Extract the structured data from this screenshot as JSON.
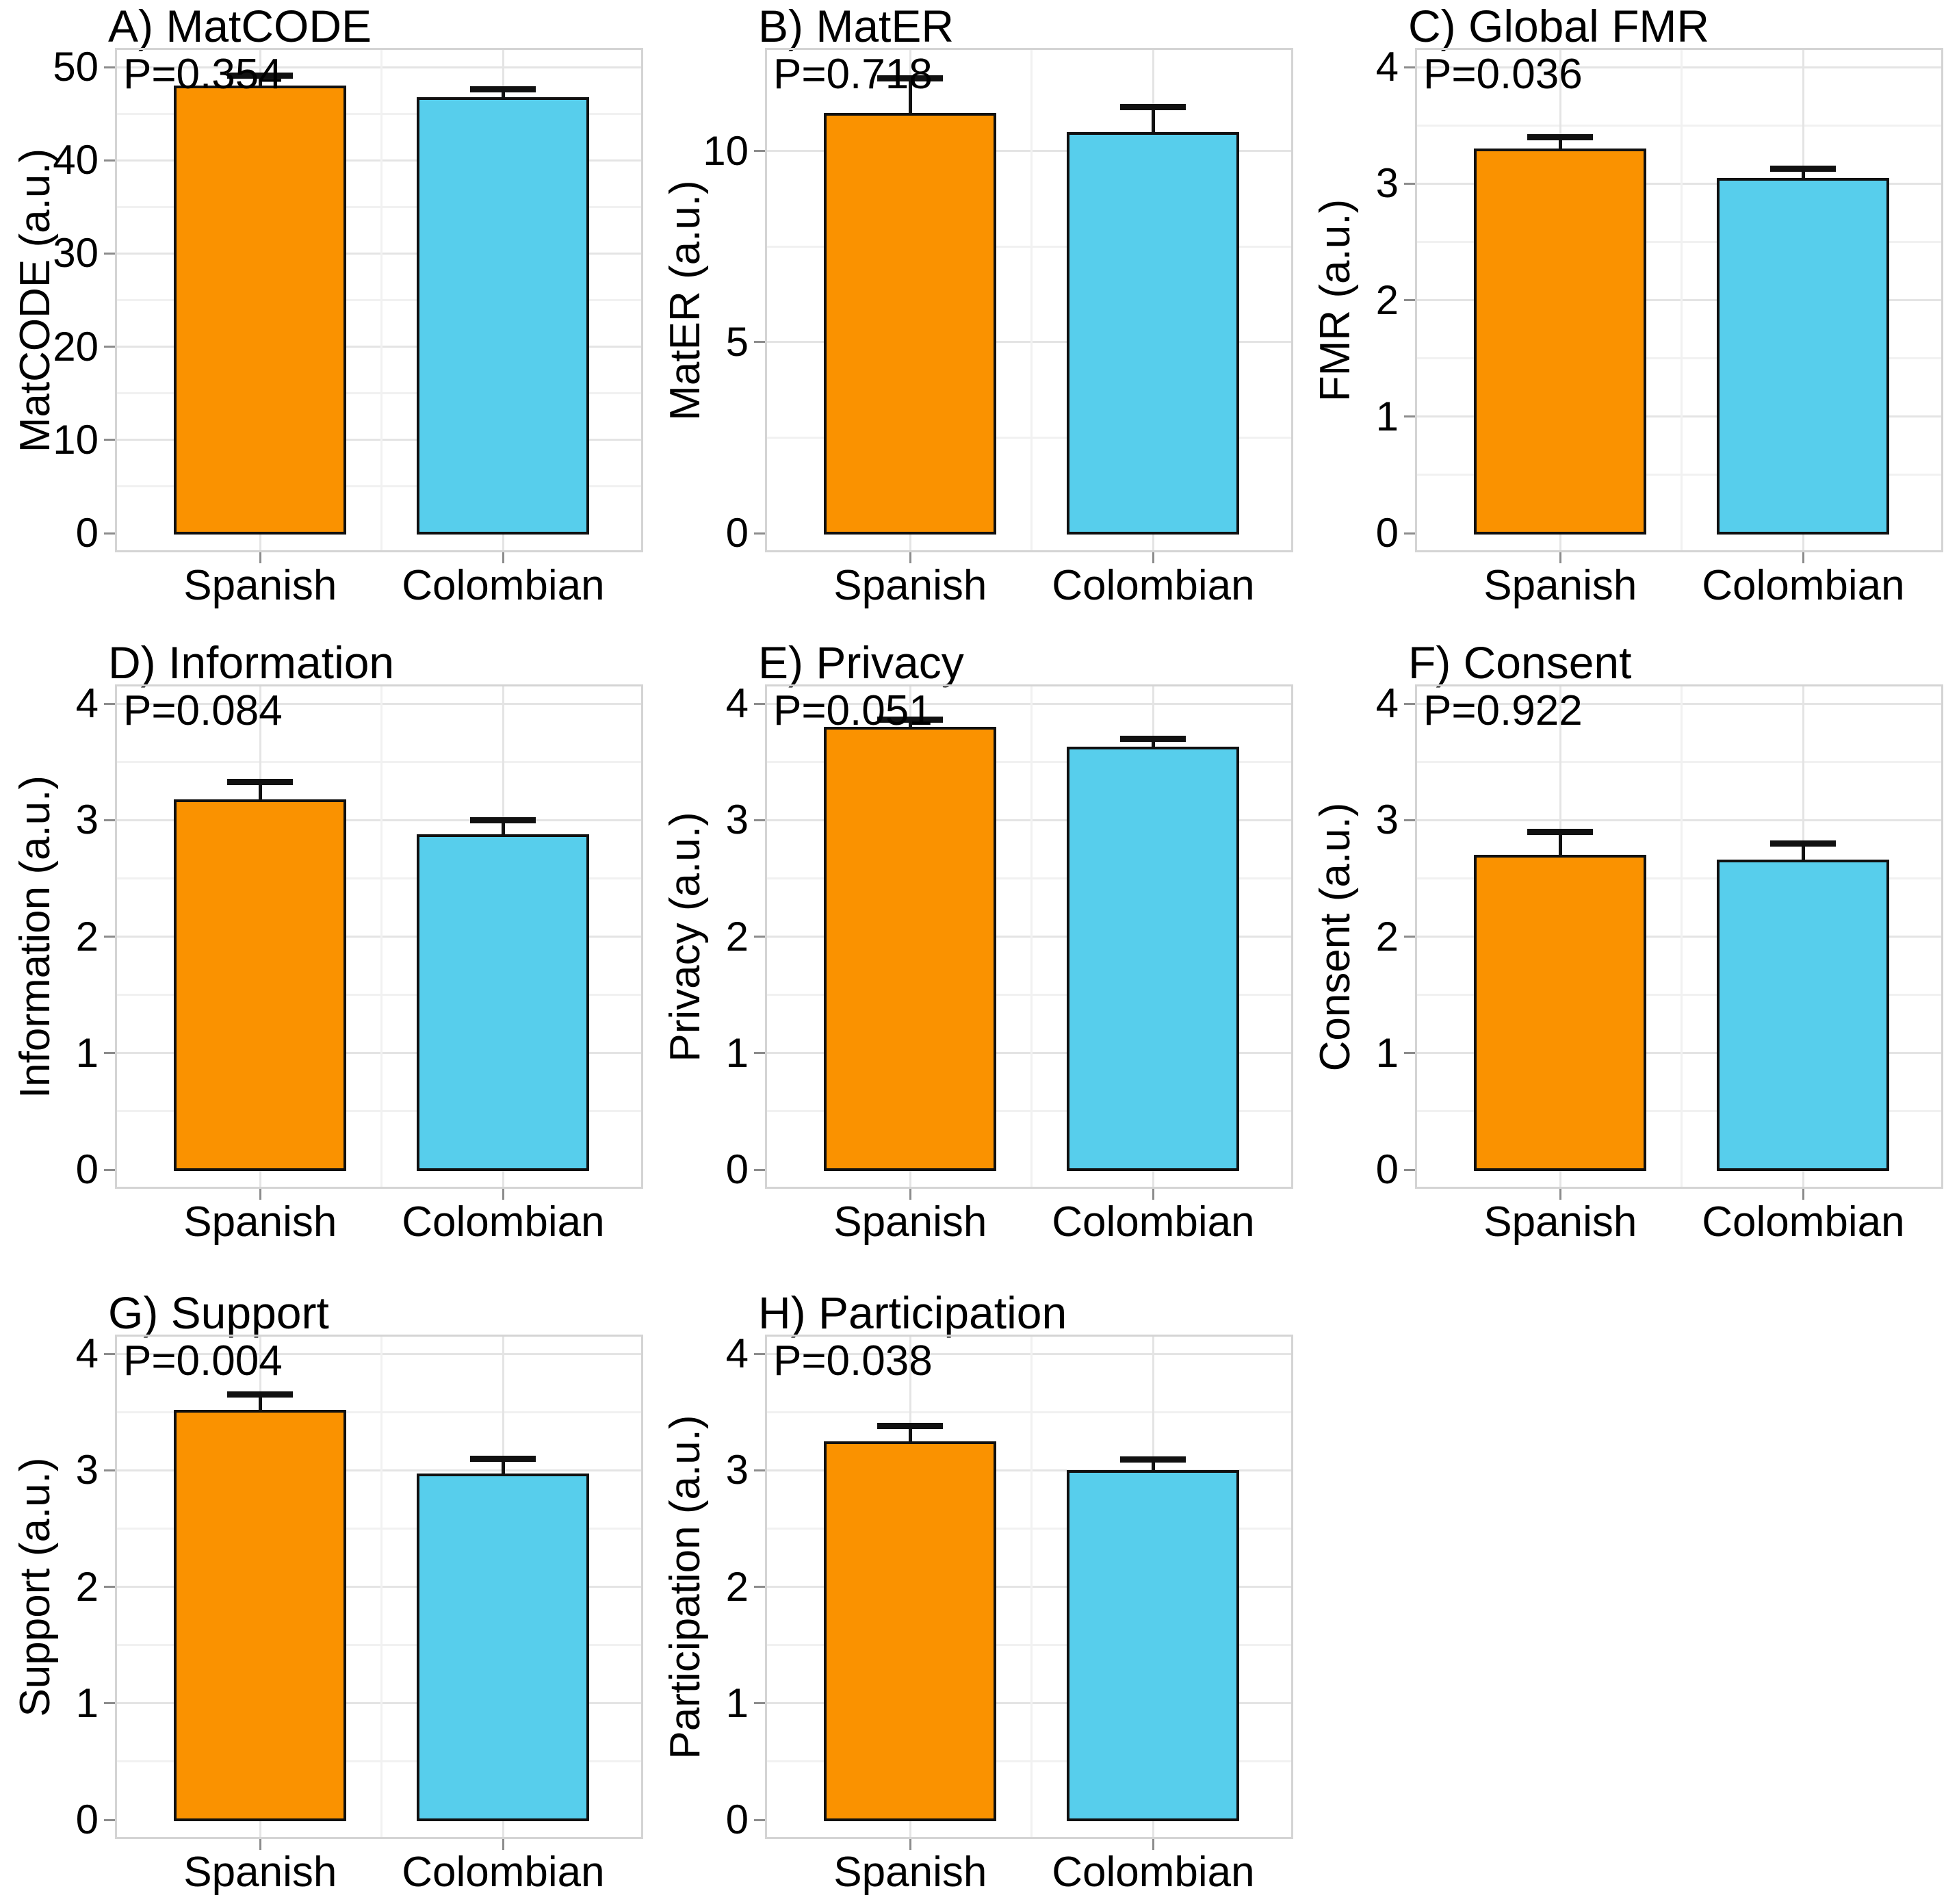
{
  "figure": {
    "background": "#ffffff",
    "rows": 3,
    "cols": 3,
    "description_categories": [
      "Spanish",
      "Colombian"
    ]
  },
  "colors": {
    "spanish_bar": "#FA9200",
    "colombian_bar": "#57CEEC",
    "bar_edge": "#111111",
    "grid_major": "#e4e4e4",
    "grid_minor": "#f1f1f1",
    "plot_border": "#d4d4d4",
    "tick_mark": "#8c8c8c",
    "text": "#000000"
  },
  "chart_data": [
    {
      "id": "A",
      "type": "bar",
      "title": "A) MatCODE",
      "p_label": "P=0.354",
      "p_value": 0.354,
      "ylabel": "MatCODE (a.u.)",
      "categories": [
        "Spanish",
        "Colombian"
      ],
      "values": [
        48.0,
        46.8
      ],
      "error_top": [
        49.1,
        47.6
      ],
      "yticks": [
        0,
        10,
        20,
        30,
        40,
        50
      ],
      "ytick_labels": [
        "0",
        "10",
        "20",
        "30",
        "40",
        "50"
      ],
      "yticks_minor": [
        5,
        15,
        25,
        35,
        45
      ],
      "axis_max": 50,
      "ylim": [
        0,
        52
      ],
      "grid": true,
      "legend": "none"
    },
    {
      "id": "B",
      "type": "bar",
      "title": "B) MatER",
      "p_label": "P=0.718",
      "p_value": 0.718,
      "ylabel": "MatER (a.u.)",
      "categories": [
        "Spanish",
        "Colombian"
      ],
      "values": [
        11.0,
        10.5
      ],
      "error_top": [
        11.9,
        11.15
      ],
      "yticks": [
        0,
        5,
        10
      ],
      "ytick_labels": [
        "0",
        "5",
        "10"
      ],
      "yticks_minor": [
        2.5,
        7.5
      ],
      "axis_max": 12.2,
      "ylim": [
        0,
        12.7
      ],
      "grid": true,
      "legend": "none"
    },
    {
      "id": "C",
      "type": "bar",
      "title": "C) Global FMR",
      "p_label": "P=0.036",
      "p_value": 0.036,
      "ylabel": "FMR (a.u.)",
      "categories": [
        "Spanish",
        "Colombian"
      ],
      "values": [
        3.3,
        3.05
      ],
      "error_top": [
        3.4,
        3.13
      ],
      "yticks": [
        0,
        1,
        2,
        3,
        4
      ],
      "ytick_labels": [
        "0",
        "1",
        "2",
        "3",
        "4"
      ],
      "yticks_minor": [
        0.5,
        1.5,
        2.5,
        3.5
      ],
      "axis_max": 4,
      "ylim": [
        0,
        4.2
      ],
      "grid": true,
      "legend": "none"
    },
    {
      "id": "D",
      "type": "bar",
      "title": "D) Information",
      "p_label": "P=0.084",
      "p_value": 0.084,
      "ylabel": "Information (a.u.)",
      "categories": [
        "Spanish",
        "Colombian"
      ],
      "values": [
        3.18,
        2.88
      ],
      "error_top": [
        3.33,
        3.0
      ],
      "yticks": [
        0,
        1,
        2,
        3,
        4
      ],
      "ytick_labels": [
        "0",
        "1",
        "2",
        "3",
        "4"
      ],
      "yticks_minor": [
        0.5,
        1.5,
        2.5,
        3.5
      ],
      "axis_max": 4,
      "ylim": [
        0,
        4.2
      ],
      "grid": true,
      "legend": "none"
    },
    {
      "id": "E",
      "type": "bar",
      "title": "E) Privacy",
      "p_label": "P=0.051",
      "p_value": 0.051,
      "ylabel": "Privacy (a.u.)",
      "categories": [
        "Spanish",
        "Colombian"
      ],
      "values": [
        3.8,
        3.63
      ],
      "error_top": [
        3.86,
        3.7
      ],
      "yticks": [
        0,
        1,
        2,
        3,
        4
      ],
      "ytick_labels": [
        "0",
        "1",
        "2",
        "3",
        "4"
      ],
      "yticks_minor": [
        0.5,
        1.5,
        2.5,
        3.5
      ],
      "axis_max": 4,
      "ylim": [
        0,
        4.2
      ],
      "grid": true,
      "legend": "none"
    },
    {
      "id": "F",
      "type": "bar",
      "title": "F) Consent",
      "p_label": "P=0.922",
      "p_value": 0.922,
      "ylabel": "Consent (a.u.)",
      "categories": [
        "Spanish",
        "Colombian"
      ],
      "values": [
        2.7,
        2.66
      ],
      "error_top": [
        2.9,
        2.8
      ],
      "yticks": [
        0,
        1,
        2,
        3,
        4
      ],
      "ytick_labels": [
        "0",
        "1",
        "2",
        "3",
        "4"
      ],
      "yticks_minor": [
        0.5,
        1.5,
        2.5,
        3.5
      ],
      "axis_max": 4,
      "ylim": [
        0,
        4.2
      ],
      "grid": true,
      "legend": "none"
    },
    {
      "id": "G",
      "type": "bar",
      "title": "G) Support",
      "p_label": "P=0.004",
      "p_value": 0.004,
      "ylabel": "Support (a.u.)",
      "categories": [
        "Spanish",
        "Colombian"
      ],
      "values": [
        3.52,
        2.97
      ],
      "error_top": [
        3.65,
        3.1
      ],
      "yticks": [
        0,
        1,
        2,
        3,
        4
      ],
      "ytick_labels": [
        "0",
        "1",
        "2",
        "3",
        "4"
      ],
      "yticks_minor": [
        0.5,
        1.5,
        2.5,
        3.5
      ],
      "axis_max": 4,
      "ylim": [
        0,
        4.2
      ],
      "grid": true,
      "legend": "none"
    },
    {
      "id": "H",
      "type": "bar",
      "title": "H) Participation",
      "p_label": "P=0.038",
      "p_value": 0.038,
      "ylabel": "Participation (a.u.)",
      "categories": [
        "Spanish",
        "Colombian"
      ],
      "values": [
        3.25,
        3.0
      ],
      "error_top": [
        3.38,
        3.09
      ],
      "yticks": [
        0,
        1,
        2,
        3,
        4
      ],
      "ytick_labels": [
        "0",
        "1",
        "2",
        "3",
        "4"
      ],
      "yticks_minor": [
        0.5,
        1.5,
        2.5,
        3.5
      ],
      "axis_max": 4,
      "ylim": [
        0,
        4.2
      ],
      "grid": true,
      "legend": "none"
    }
  ]
}
